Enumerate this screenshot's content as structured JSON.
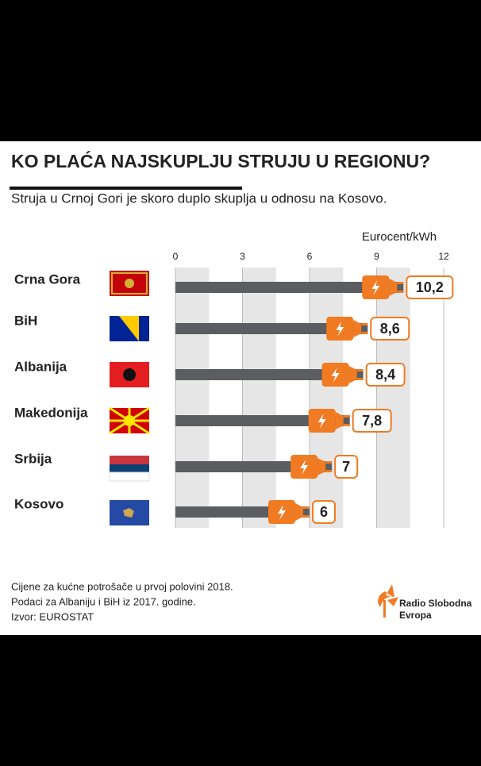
{
  "chart_data": {
    "type": "bar",
    "title": "KO PLAĆA NAJSKUPLJU STRUJU U REGIONU?",
    "subtitle": "Struja u Crnoj Gori je skoro duplo skuplja u odnosu na Kosovo.",
    "axis_label": "Eurocent/kWh",
    "categories": [
      "Crna Gora",
      "BiH",
      "Albanija",
      "Makedonija",
      "Srbija",
      "Kosovo"
    ],
    "values": [
      10.2,
      8.6,
      8.4,
      7.8,
      7,
      6
    ],
    "value_labels": [
      "10,2",
      "8,6",
      "8,4",
      "7,8",
      "7",
      "6"
    ],
    "color": "#5b5d60",
    "xlim": [
      0,
      12
    ],
    "xticks": [
      0,
      3,
      6,
      9,
      12
    ],
    "grid": true,
    "notes": [
      "Cijene za kućne potrošače u prvoj polovini 2018.",
      "Podaci za Albaniju i BiH iz 2017. godine.",
      "Izvor: EUROSTAT"
    ],
    "logo": [
      "Radio Slobodna",
      "Evropa"
    ]
  }
}
